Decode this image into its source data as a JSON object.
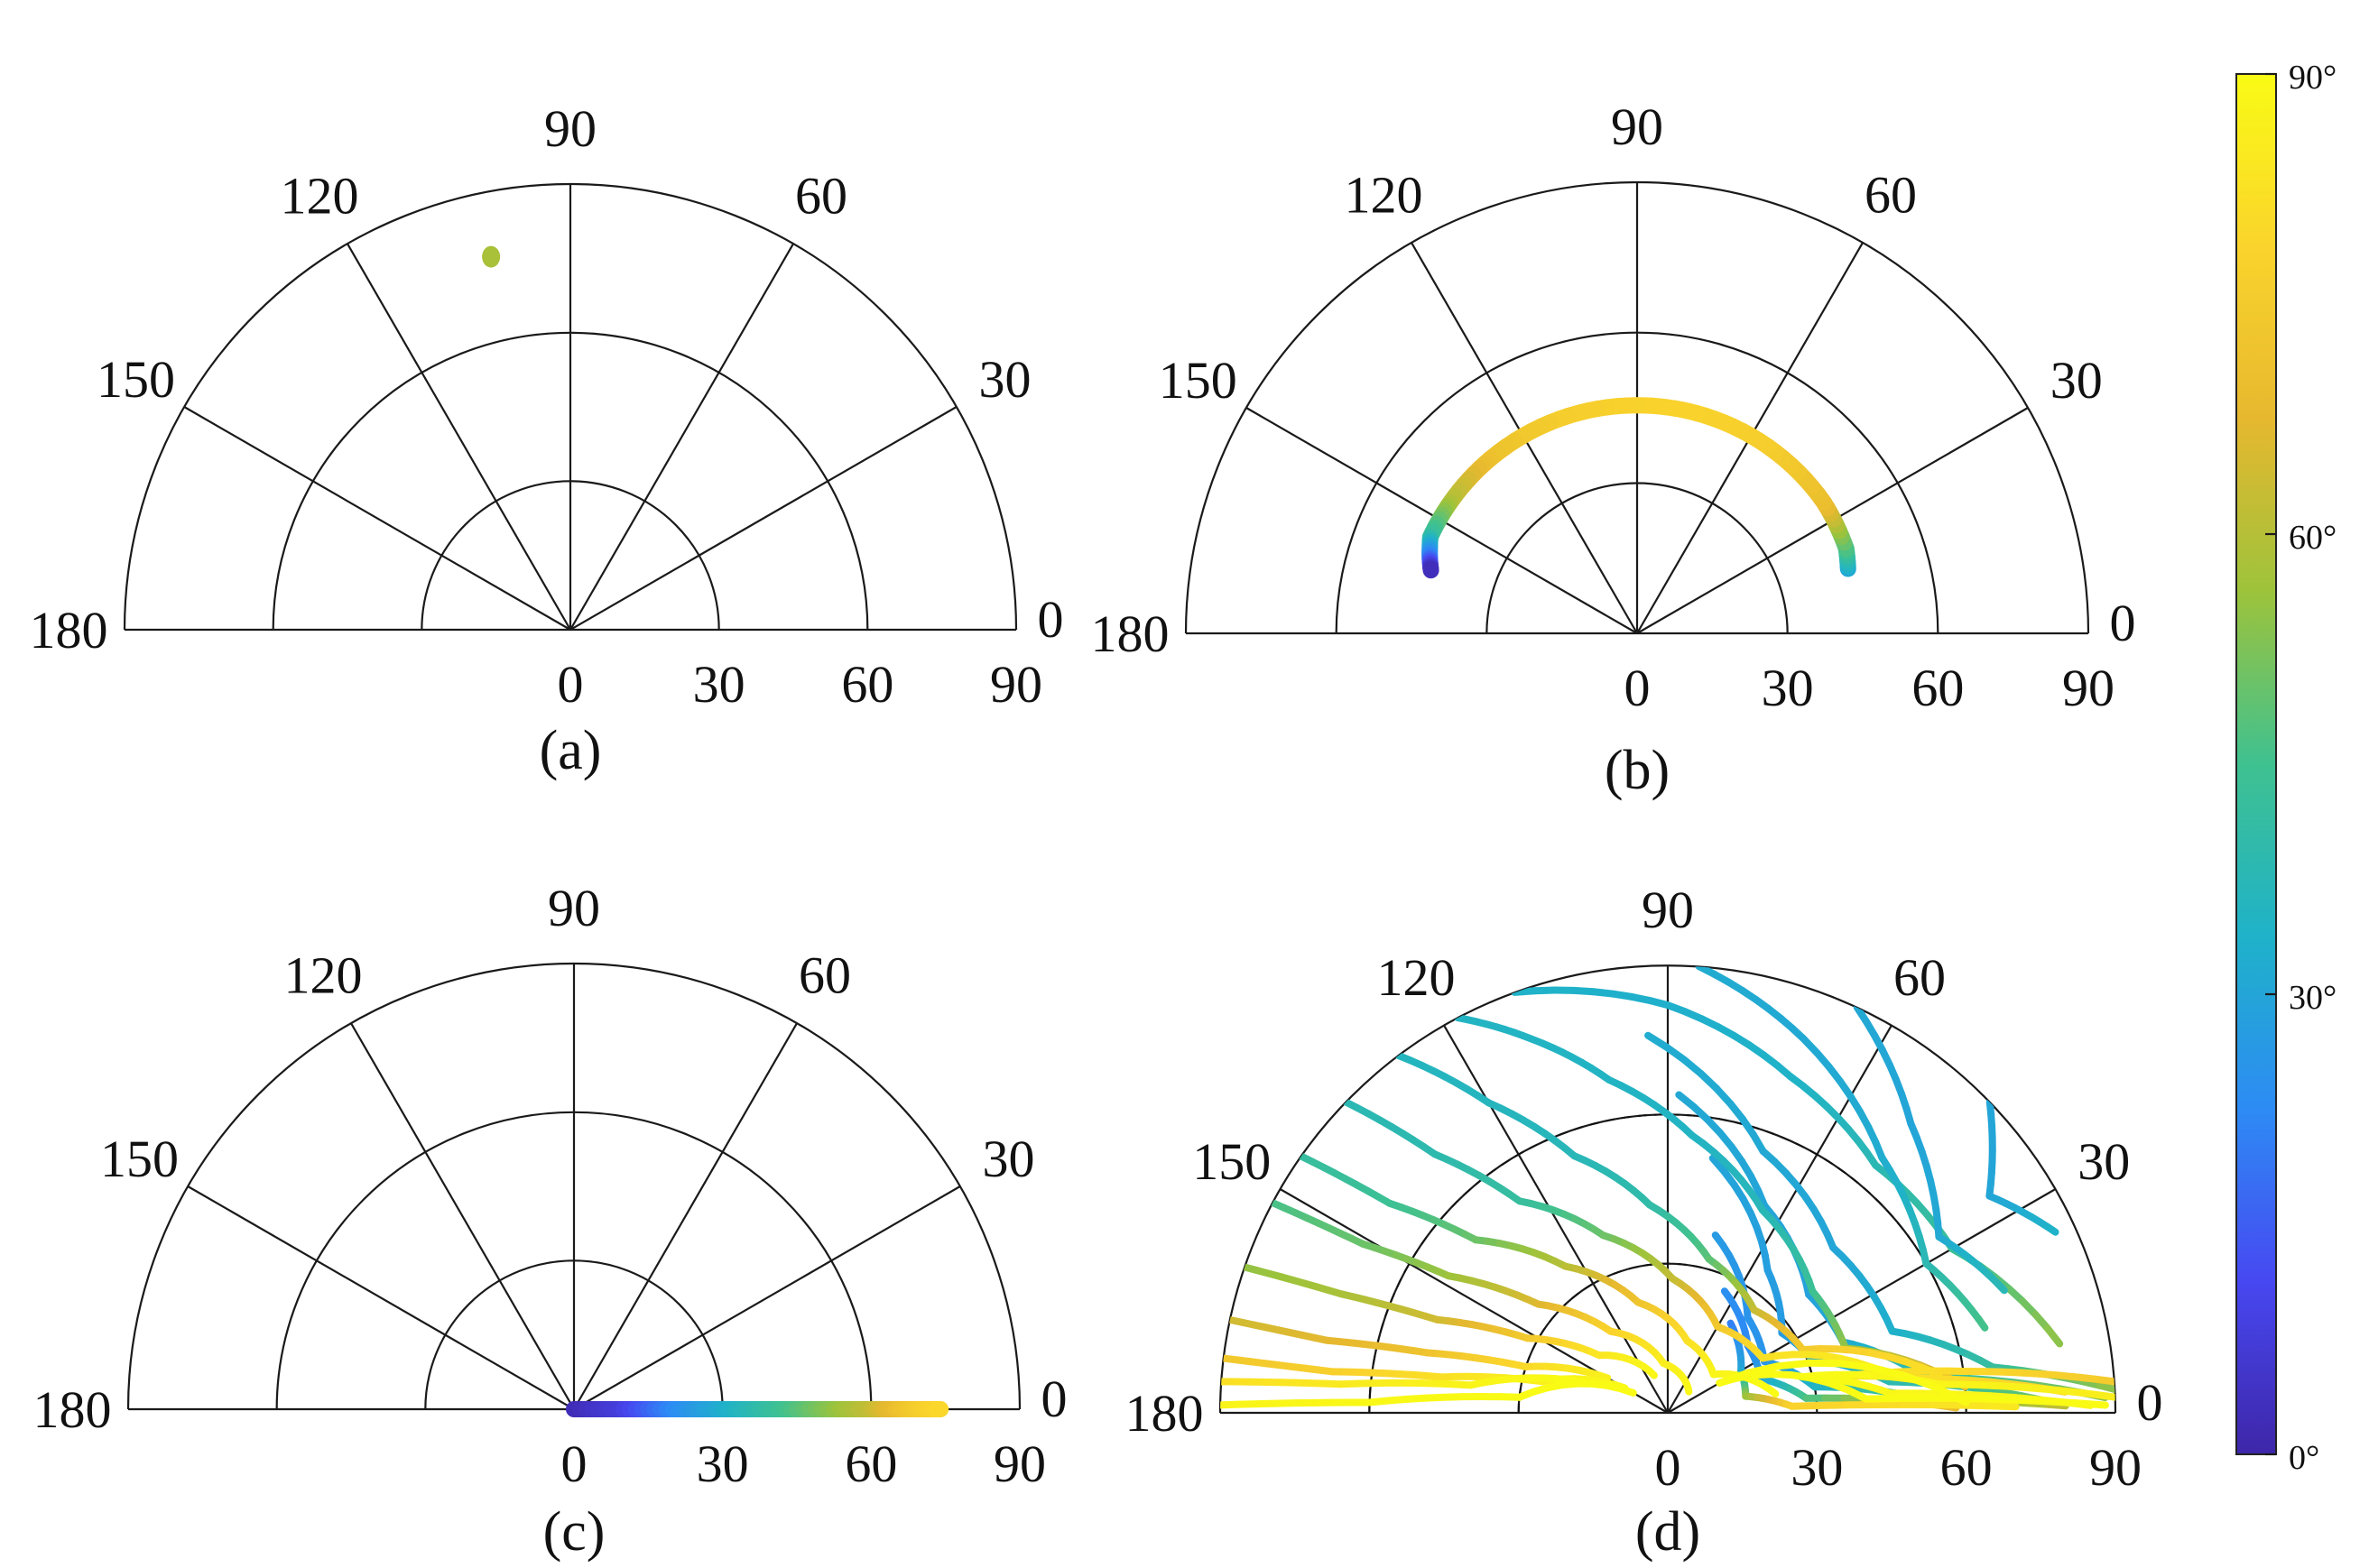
{
  "chart_data": [
    {
      "type": "scatter",
      "panel": "(a)",
      "coordinate_system": "polar-half",
      "angle_ticks": [
        "0",
        "30",
        "60",
        "90",
        "120",
        "150",
        "180"
      ],
      "radial_ticks": [
        "0",
        "30",
        "60",
        "90"
      ],
      "rlim": [
        0,
        90
      ],
      "grid": true,
      "series": [
        {
          "points": [
            {
              "theta": 102,
              "r": 77,
              "c": 58
            }
          ]
        }
      ]
    },
    {
      "type": "line",
      "panel": "(b)",
      "coordinate_system": "polar-half",
      "angle_ticks": [
        "0",
        "30",
        "60",
        "90",
        "120",
        "150",
        "180"
      ],
      "radial_ticks": [
        "0",
        "30",
        "60",
        "90"
      ],
      "rlim": [
        0,
        90
      ],
      "grid": true,
      "series": [
        {
          "points": [
            {
              "theta": 17,
              "r": 44,
              "c": 30
            },
            {
              "theta": 22,
              "r": 45,
              "c": 45
            },
            {
              "theta": 35,
              "r": 45.5,
              "c": 70
            },
            {
              "theta": 55,
              "r": 45.5,
              "c": 76
            },
            {
              "theta": 75,
              "r": 45.5,
              "c": 78
            },
            {
              "theta": 90,
              "r": 45.5,
              "c": 78
            },
            {
              "theta": 110,
              "r": 45.5,
              "c": 76
            },
            {
              "theta": 130,
              "r": 45.5,
              "c": 72
            },
            {
              "theta": 145,
              "r": 45.5,
              "c": 60
            },
            {
              "theta": 155,
              "r": 45.5,
              "c": 42
            },
            {
              "theta": 160,
              "r": 44,
              "c": 20
            },
            {
              "theta": 163,
              "r": 43,
              "c": 2
            }
          ]
        }
      ]
    },
    {
      "type": "line",
      "panel": "(c)",
      "coordinate_system": "polar-half",
      "angle_ticks": [
        "0",
        "30",
        "60",
        "90",
        "120",
        "150",
        "180"
      ],
      "radial_ticks": [
        "0",
        "30",
        "60",
        "90"
      ],
      "rlim": [
        0,
        90
      ],
      "grid": true,
      "series": [
        {
          "points": [
            {
              "theta": 0,
              "r": 0,
              "c": 2
            },
            {
              "theta": 0,
              "r": 10,
              "c": 8
            },
            {
              "theta": 0,
              "r": 20,
              "c": 22
            },
            {
              "theta": 0,
              "r": 30,
              "c": 32
            },
            {
              "theta": 0,
              "r": 40,
              "c": 42
            },
            {
              "theta": 0,
              "r": 50,
              "c": 52
            },
            {
              "theta": 0,
              "r": 60,
              "c": 62
            },
            {
              "theta": 0,
              "r": 68,
              "c": 74
            },
            {
              "theta": 0,
              "r": 74,
              "c": 80
            }
          ]
        }
      ]
    },
    {
      "type": "line",
      "panel": "(d)",
      "coordinate_system": "polar-half",
      "angle_ticks": [
        "0",
        "30",
        "60",
        "90",
        "120",
        "150",
        "180"
      ],
      "radial_ticks": [
        "0",
        "30",
        "60",
        "90"
      ],
      "rlim": [
        0,
        90
      ],
      "grid": true,
      "grid_style": "dashed-over-solid",
      "series": [
        {
          "points": [
            {
              "theta": 110,
              "r": 90,
              "c": 34
            },
            {
              "theta": 90,
              "r": 82,
              "c": 33
            },
            {
              "theta": 70,
              "r": 72,
              "c": 34
            },
            {
              "theta": 50,
              "r": 65,
              "c": 38
            },
            {
              "theta": 30,
              "r": 66,
              "c": 43
            },
            {
              "theta": 10,
              "r": 80,
              "c": 55
            }
          ]
        },
        {
          "points": [
            {
              "theta": 86,
              "r": 90,
              "c": 32
            },
            {
              "theta": 70,
              "r": 80,
              "c": 31
            },
            {
              "theta": 50,
              "r": 67,
              "c": 32
            },
            {
              "theta": 30,
              "r": 60,
              "c": 38
            },
            {
              "theta": 15,
              "r": 66,
              "c": 46
            }
          ]
        },
        {
          "points": [
            {
              "theta": 65,
              "r": 90,
              "c": 31
            },
            {
              "theta": 50,
              "r": 76,
              "c": 30
            },
            {
              "theta": 33,
              "r": 65,
              "c": 31
            },
            {
              "theta": 20,
              "r": 72,
              "c": 38
            }
          ]
        },
        {
          "points": [
            {
              "theta": 44,
              "r": 90,
              "c": 30
            },
            {
              "theta": 34,
              "r": 78,
              "c": 30
            },
            {
              "theta": 25,
              "r": 86,
              "c": 34
            }
          ]
        },
        {
          "points": [
            {
              "theta": 93,
              "r": 76,
              "c": 32
            },
            {
              "theta": 70,
              "r": 56,
              "c": 31
            },
            {
              "theta": 45,
              "r": 47,
              "c": 30
            },
            {
              "theta": 20,
              "r": 48,
              "c": 33
            },
            {
              "theta": 8,
              "r": 66,
              "c": 42
            },
            {
              "theta": 3,
              "r": 90,
              "c": 55
            }
          ]
        },
        {
          "points": [
            {
              "theta": 88,
              "r": 64,
              "c": 31
            },
            {
              "theta": 65,
              "r": 46,
              "c": 30
            },
            {
              "theta": 40,
              "r": 37,
              "c": 29
            },
            {
              "theta": 22,
              "r": 38,
              "c": 31
            },
            {
              "theta": 8,
              "r": 52,
              "c": 40
            },
            {
              "theta": 2,
              "r": 88,
              "c": 55
            }
          ]
        },
        {
          "points": [
            {
              "theta": 80,
              "r": 52,
              "c": 30
            },
            {
              "theta": 55,
              "r": 35,
              "c": 28
            },
            {
              "theta": 35,
              "r": 28,
              "c": 27
            },
            {
              "theta": 20,
              "r": 31,
              "c": 30
            },
            {
              "theta": 8,
              "r": 45,
              "c": 38
            },
            {
              "theta": 2,
              "r": 75,
              "c": 50
            }
          ]
        },
        {
          "points": [
            {
              "theta": 75,
              "r": 37,
              "c": 27
            },
            {
              "theta": 50,
              "r": 25,
              "c": 25
            },
            {
              "theta": 28,
              "r": 22,
              "c": 25
            },
            {
              "theta": 10,
              "r": 30,
              "c": 34
            },
            {
              "theta": 3,
              "r": 52,
              "c": 48
            },
            {
              "theta": 1,
              "r": 80,
              "c": 62
            }
          ]
        },
        {
          "points": [
            {
              "theta": 65,
              "r": 27,
              "c": 24
            },
            {
              "theta": 40,
              "r": 21,
              "c": 22
            },
            {
              "theta": 20,
              "r": 20,
              "c": 28
            },
            {
              "theta": 6,
              "r": 28,
              "c": 46
            },
            {
              "theta": 1,
              "r": 58,
              "c": 70
            }
          ]
        },
        {
          "points": [
            {
              "theta": 55,
              "r": 22,
              "c": 20
            },
            {
              "theta": 30,
              "r": 17,
              "c": 30
            },
            {
              "theta": 12,
              "r": 16,
              "c": 55
            },
            {
              "theta": 3,
              "r": 25,
              "c": 78
            },
            {
              "theta": 1,
              "r": 70,
              "c": 85
            }
          ]
        },
        {
          "points": [
            {
              "theta": 118,
              "r": 90,
              "c": 35
            },
            {
              "theta": 110,
              "r": 80,
              "c": 35
            },
            {
              "theta": 100,
              "r": 68,
              "c": 35
            },
            {
              "theta": 85,
              "r": 56,
              "c": 35
            },
            {
              "theta": 65,
              "r": 45,
              "c": 37
            },
            {
              "theta": 40,
              "r": 38,
              "c": 44
            },
            {
              "theta": 20,
              "r": 38,
              "c": 55
            },
            {
              "theta": 5,
              "r": 60,
              "c": 70
            }
          ]
        },
        {
          "points": [
            {
              "theta": 127,
              "r": 90,
              "c": 36
            },
            {
              "theta": 120,
              "r": 72,
              "c": 36
            },
            {
              "theta": 110,
              "r": 55,
              "c": 37
            },
            {
              "theta": 95,
              "r": 42,
              "c": 40
            },
            {
              "theta": 75,
              "r": 32,
              "c": 48
            },
            {
              "theta": 50,
              "r": 27,
              "c": 62
            },
            {
              "theta": 25,
              "r": 30,
              "c": 75
            },
            {
              "theta": 8,
              "r": 55,
              "c": 82
            }
          ]
        },
        {
          "points": [
            {
              "theta": 136,
              "r": 90,
              "c": 38
            },
            {
              "theta": 132,
              "r": 70,
              "c": 39
            },
            {
              "theta": 125,
              "r": 52,
              "c": 42
            },
            {
              "theta": 110,
              "r": 38,
              "c": 50
            },
            {
              "theta": 88,
              "r": 27,
              "c": 62
            },
            {
              "theta": 60,
              "r": 20,
              "c": 74
            },
            {
              "theta": 30,
              "r": 22,
              "c": 82
            },
            {
              "theta": 10,
              "r": 45,
              "c": 86
            }
          ]
        },
        {
          "points": [
            {
              "theta": 145,
              "r": 90,
              "c": 42
            },
            {
              "theta": 143,
              "r": 70,
              "c": 44
            },
            {
              "theta": 138,
              "r": 52,
              "c": 50
            },
            {
              "theta": 125,
              "r": 36,
              "c": 60
            },
            {
              "theta": 105,
              "r": 23,
              "c": 72
            },
            {
              "theta": 75,
              "r": 15,
              "c": 82
            },
            {
              "theta": 40,
              "r": 12,
              "c": 88
            },
            {
              "theta": 10,
              "r": 22,
              "c": 90
            }
          ]
        },
        {
          "points": [
            {
              "theta": 152,
              "r": 90,
              "c": 46
            },
            {
              "theta": 151,
              "r": 70,
              "c": 50
            },
            {
              "theta": 148,
              "r": 52,
              "c": 56
            },
            {
              "theta": 140,
              "r": 34,
              "c": 66
            },
            {
              "theta": 125,
              "r": 20,
              "c": 78
            },
            {
              "theta": 95,
              "r": 10,
              "c": 86
            },
            {
              "theta": 45,
              "r": 6,
              "c": 89
            }
          ]
        },
        {
          "points": [
            {
              "theta": 161,
              "r": 90,
              "c": 55
            },
            {
              "theta": 160,
              "r": 70,
              "c": 58
            },
            {
              "theta": 158,
              "r": 50,
              "c": 64
            },
            {
              "theta": 152,
              "r": 32,
              "c": 74
            },
            {
              "theta": 140,
              "r": 18,
              "c": 84
            },
            {
              "theta": 110,
              "r": 8,
              "c": 89
            }
          ]
        },
        {
          "points": [
            {
              "theta": 168,
              "r": 90,
              "c": 64
            },
            {
              "theta": 168,
              "r": 70,
              "c": 67
            },
            {
              "theta": 166,
              "r": 50,
              "c": 72
            },
            {
              "theta": 162,
              "r": 30,
              "c": 80
            },
            {
              "theta": 150,
              "r": 14,
              "c": 87
            }
          ]
        },
        {
          "points": [
            {
              "theta": 173,
              "r": 90,
              "c": 74
            },
            {
              "theta": 173,
              "r": 68,
              "c": 77
            },
            {
              "theta": 171,
              "r": 46,
              "c": 82
            },
            {
              "theta": 166,
              "r": 26,
              "c": 87
            },
            {
              "theta": 150,
              "r": 10,
              "c": 89
            }
          ]
        },
        {
          "points": [
            {
              "theta": 176,
              "r": 90,
              "c": 82
            },
            {
              "theta": 175,
              "r": 66,
              "c": 85
            },
            {
              "theta": 172,
              "r": 40,
              "c": 88
            },
            {
              "theta": 160,
              "r": 18,
              "c": 90
            }
          ]
        },
        {
          "points": [
            {
              "theta": 179,
              "r": 90,
              "c": 88
            },
            {
              "theta": 178,
              "r": 60,
              "c": 89
            },
            {
              "theta": 174,
              "r": 30,
              "c": 90
            },
            {
              "theta": 150,
              "r": 8,
              "c": 90
            }
          ]
        },
        {
          "points": [
            {
              "theta": 4,
              "r": 90,
              "c": 75
            },
            {
              "theta": 8,
              "r": 60,
              "c": 80
            },
            {
              "theta": 12,
              "r": 35,
              "c": 84
            },
            {
              "theta": 8,
              "r": 50,
              "c": 82
            },
            {
              "theta": 3,
              "r": 80,
              "c": 78
            }
          ]
        },
        {
          "points": [
            {
              "theta": 2,
              "r": 90,
              "c": 86
            },
            {
              "theta": 6,
              "r": 55,
              "c": 88
            },
            {
              "theta": 15,
              "r": 28,
              "c": 90
            },
            {
              "theta": 5,
              "r": 45,
              "c": 89
            },
            {
              "theta": 1,
              "r": 85,
              "c": 88
            }
          ]
        },
        {
          "points": [
            {
              "theta": 1,
              "r": 88,
              "c": 90
            },
            {
              "theta": 4,
              "r": 40,
              "c": 90
            },
            {
              "theta": 30,
              "r": 12,
              "c": 90
            },
            {
              "theta": 2,
              "r": 60,
              "c": 90
            }
          ]
        }
      ]
    }
  ],
  "captions": [
    "(a)",
    "(b)",
    "(c)",
    "(d)"
  ],
  "colorbar": {
    "colormap": "parula",
    "range": [
      0,
      90
    ],
    "tick_values": [
      0,
      30,
      60,
      90
    ],
    "tick_labels": [
      "0°",
      "30°",
      "60°",
      "90°"
    ],
    "colors": [
      "#3e26a8",
      "#4748f1",
      "#2d8bf4",
      "#1fb2c9",
      "#3fc190",
      "#9dc33b",
      "#e6b82f",
      "#fad42c",
      "#f9fb15"
    ]
  }
}
